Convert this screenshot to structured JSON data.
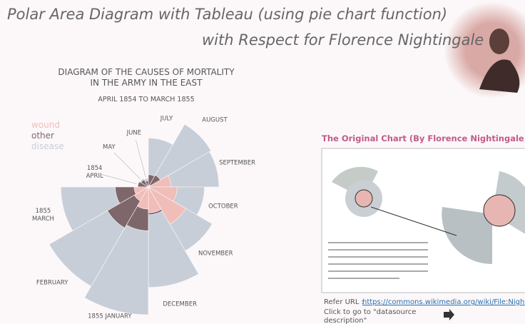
{
  "header": {
    "title": "Polar Area Diagram with Tableau (using pie chart function)",
    "subtitle": "with Respect for Florence Nightingale"
  },
  "chart_data": {
    "type": "polar-area",
    "title": "DIAGRAM OF THE CAUSES OF MORTALITY\nIN THE ARMY IN THE EAST",
    "subtitle": "APRIL 1854 TO MARCH 1855",
    "categories": [
      "1854\nAPRIL",
      "MAY",
      "JUNE",
      "JULY",
      "AUGUST",
      "SEPTEMBER",
      "OCTOBER",
      "NOVEMBER",
      "DECEMBER",
      "1855 JANUARY",
      "FEBRUARY",
      "1855\nMARCH"
    ],
    "series": [
      {
        "name": "disease",
        "color": "#c8ced8",
        "values": [
          1.4,
          6.2,
          4.7,
          150,
          328.5,
          312.2,
          197,
          340.6,
          631.5,
          1022.8,
          822.8,
          480.3
        ]
      },
      {
        "name": "other",
        "color": "#7e676b",
        "values": [
          7.0,
          4.6,
          2.5,
          9.6,
          11.9,
          27.7,
          50.1,
          42.8,
          48,
          120,
          140.1,
          68.6
        ]
      },
      {
        "name": "wound",
        "color": "#f0bdb8",
        "values": [
          0,
          0,
          0,
          0,
          0.4,
          32.1,
          51.7,
          115.8,
          41.7,
          30.7,
          16.3,
          12.8
        ]
      }
    ],
    "legend": "top-left"
  },
  "side_panel": {
    "title": "The Original Chart (By Florence Nightingale)",
    "refer_label": "Refer URL :",
    "refer_url": "https://commons.wikimedia.org/wiki/File:Nightingale-mortality.jpg",
    "link_text": "Click to go to \"datasource description\""
  }
}
